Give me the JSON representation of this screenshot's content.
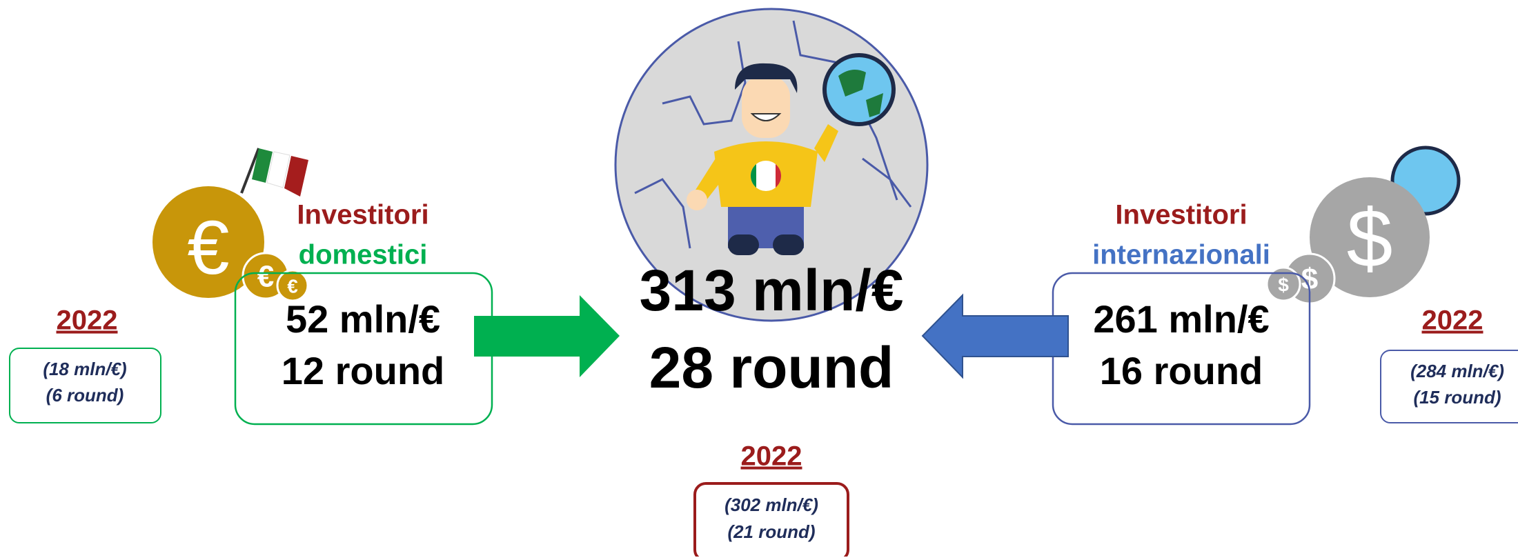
{
  "domestic": {
    "title_line1": "Investitori",
    "title_line2": "domestici",
    "amount": "52 mln/€",
    "rounds": "12 round",
    "previous_year": "2022",
    "previous_amount": "(18 mln/€)",
    "previous_rounds": "(6 round)"
  },
  "total": {
    "amount": "313 mln/€",
    "rounds": "28 round",
    "previous_year": "2022",
    "previous_amount": "(302 mln/€)",
    "previous_rounds": "(21 round)"
  },
  "international": {
    "title_line1": "Investitori",
    "title_line2": "internazionali",
    "amount": "261 mln/€",
    "rounds": "16 round",
    "previous_year": "2022",
    "previous_amount": "(284 mln/€)",
    "previous_rounds": "(15 round)"
  }
}
